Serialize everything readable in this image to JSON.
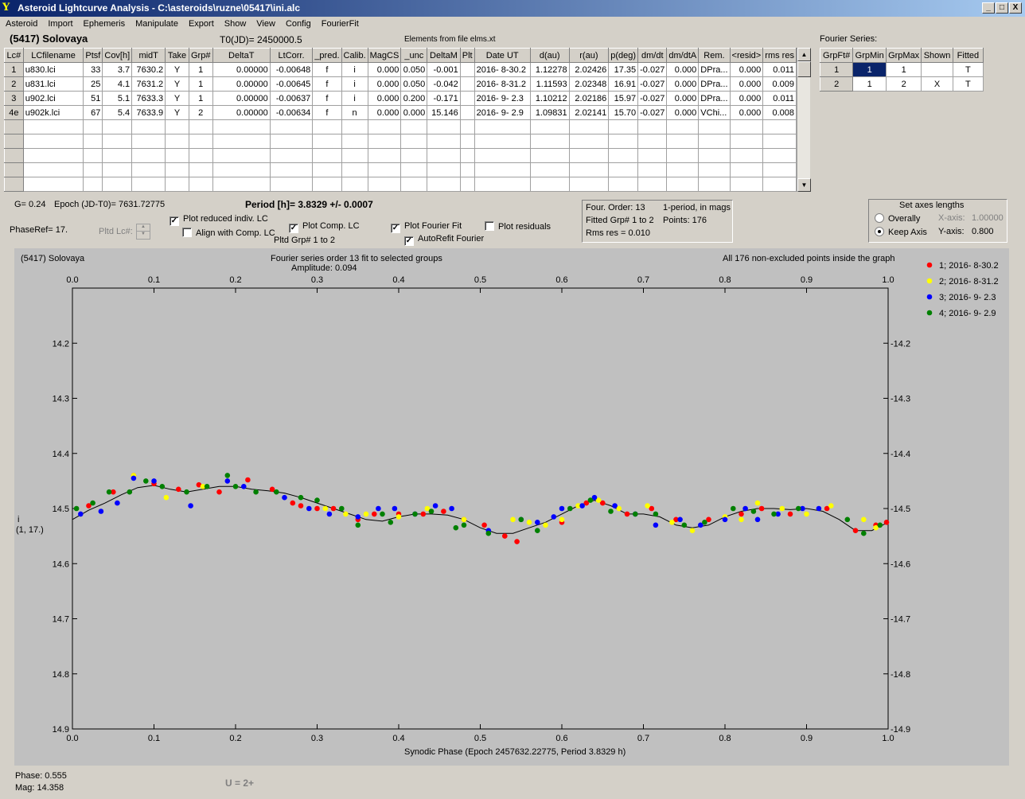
{
  "window": {
    "title": "Asteroid Lightcurve Analysis - C:\\asteroids\\ruzne\\05417\\ini.alc",
    "app_icon": "Y",
    "min_label": "_",
    "max_label": "□",
    "close_label": "X"
  },
  "menu": [
    "Asteroid",
    "Import",
    "Ephemeris",
    "Manipulate",
    "Export",
    "Show",
    "View",
    "Config",
    "FourierFit"
  ],
  "header": {
    "asteroid_name": "(5417) Solovaya",
    "t0": "T0(JD)= 2450000.5",
    "elements": "Elements from file elms.xt"
  },
  "lc_table": {
    "columns": [
      "Lc#",
      "LCfilename",
      "Ptsf",
      "Cov[h]",
      "midT",
      "Take",
      "Grp#",
      "DeltaT",
      "LtCorr.",
      "_pred.",
      "Calib.",
      "MagCS",
      "_unc",
      "DeltaM",
      "Plt",
      "Date UT",
      "d(au)",
      "r(au)",
      "p(deg)",
      "dm/dt",
      "dm/dtA",
      "Rem.",
      "<resid>",
      "rms res"
    ],
    "rows": [
      [
        "1",
        "u830.lci",
        "33",
        "3.7",
        "7630.2",
        "Y",
        "1",
        "0.00000",
        "-0.00648",
        "f",
        "i",
        "0.000",
        "0.050",
        "-0.001",
        "",
        "2016- 8-30.2",
        "1.12278",
        "2.02426",
        "17.35",
        "-0.027",
        "0.000",
        "DPra...",
        "0.000",
        "0.011"
      ],
      [
        "2",
        "u831.lci",
        "25",
        "4.1",
        "7631.2",
        "Y",
        "1",
        "0.00000",
        "-0.00645",
        "f",
        "i",
        "0.000",
        "0.050",
        "-0.042",
        "",
        "2016- 8-31.2",
        "1.11593",
        "2.02348",
        "16.91",
        "-0.027",
        "0.000",
        "DPra...",
        "0.000",
        "0.009"
      ],
      [
        "3",
        "u902.lci",
        "51",
        "5.1",
        "7633.3",
        "Y",
        "1",
        "0.00000",
        "-0.00637",
        "f",
        "i",
        "0.000",
        "0.200",
        "-0.171",
        "",
        "2016- 9- 2.3",
        "1.10212",
        "2.02186",
        "15.97",
        "-0.027",
        "0.000",
        "DPra...",
        "0.000",
        "0.011"
      ],
      [
        "4e",
        "u902k.lci",
        "67",
        "5.4",
        "7633.9",
        "Y",
        "2",
        "0.00000",
        "-0.00634",
        "f",
        "n",
        "0.000",
        "0.000",
        "15.146",
        "",
        "2016- 9- 2.9",
        "1.09831",
        "2.02141",
        "15.70",
        "-0.027",
        "0.000",
        "VChi...",
        "0.000",
        "0.008"
      ]
    ],
    "scroll_up": "▲",
    "scroll_down": "▼"
  },
  "fourier_table": {
    "label": "Fourier Series:",
    "columns": [
      "GrpFt#",
      "GrpMin",
      "GrpMax",
      "Shown",
      "Fitted"
    ],
    "rows": [
      [
        "1",
        "1",
        "1",
        "",
        "T"
      ],
      [
        "2",
        "1",
        "2",
        "X",
        "T"
      ]
    ]
  },
  "controls": {
    "g_value": "G= 0.24",
    "epoch": "Epoch (JD-T0)= 7631.72775",
    "period": "Period [h]= 3.8329 +/- 0.0007",
    "phase_ref": "PhaseRef= 17.",
    "pltd_lc": "Pltd Lc#:",
    "plot_reduced": {
      "label": "Plot reduced indiv. LC",
      "checked": true
    },
    "align_comp": {
      "label": "Align with Comp. LC",
      "checked": false
    },
    "plot_comp": {
      "label": "Plot Comp. LC",
      "checked": true
    },
    "pltd_grp": "Pltd Grp#  1   to   2",
    "plot_fourier": {
      "label": "Plot Fourier Fit",
      "checked": true
    },
    "autorefit": {
      "label": "AutoRefit Fourier",
      "checked": true
    },
    "plot_residuals": {
      "label": "Plot residuals",
      "checked": false
    },
    "check_mark": "✓"
  },
  "fourier_info": {
    "order": "Four. Order: 13",
    "mode": "1-period, in mags",
    "fitted": "Fitted Grp# 1 to 2",
    "points": "Points: 176",
    "rms": "Rms res     = 0.010"
  },
  "axes_box": {
    "title": "Set axes lengths",
    "overally": "Overally",
    "keep_axis": "Keep Axis",
    "x_axis_label": "X-axis:",
    "x_axis_value": "1.00000",
    "y_axis_label": "Y-axis:",
    "y_axis_value": "0.800",
    "selected": "Keep Axis"
  },
  "chart_header": {
    "left": "(5417) Solovaya",
    "center1": "Fourier series order 13 fit to selected groups",
    "center2": "Amplitude: 0.094",
    "right": "All 176 non-excluded points inside the graph"
  },
  "chart_data": {
    "type": "scatter",
    "xlabel": "Synodic Phase (Epoch 2457632.22775, Period 3.8329 h)",
    "ylabel": "i\n(1, 17.)",
    "ylabel_line1": "i",
    "ylabel_line2": "(1, 17.)",
    "xlim": [
      0.0,
      1.0
    ],
    "ylim": [
      14.1,
      14.9
    ],
    "y_inverted": true,
    "xticks": [
      "0.0",
      "0.1",
      "0.2",
      "0.3",
      "0.4",
      "0.5",
      "0.6",
      "0.7",
      "0.8",
      "0.9",
      "1.0"
    ],
    "yticks": [
      "14.2",
      "14.3",
      "14.4",
      "14.5",
      "14.6",
      "14.7",
      "14.8",
      "14.9"
    ],
    "grid": false,
    "legend_placement": "top-right",
    "series": [
      {
        "name": "1; 2016- 8-30.2",
        "color": "#ff0000",
        "x": [
          0.02,
          0.05,
          0.075,
          0.1,
          0.13,
          0.155,
          0.18,
          0.215,
          0.245,
          0.27,
          0.28,
          0.3,
          0.32,
          0.35,
          0.37,
          0.4,
          0.43,
          0.455,
          0.48,
          0.505,
          0.53,
          0.545,
          0.6,
          0.63,
          0.65,
          0.68,
          0.71,
          0.74,
          0.78,
          0.82,
          0.845,
          0.88,
          0.925,
          0.96,
          0.985,
          0.998
        ],
        "y": [
          14.495,
          14.47,
          14.44,
          14.455,
          14.465,
          14.457,
          14.47,
          14.448,
          14.465,
          14.49,
          14.495,
          14.5,
          14.5,
          14.52,
          14.51,
          14.51,
          14.51,
          14.505,
          14.52,
          14.53,
          14.55,
          14.56,
          14.525,
          14.49,
          14.49,
          14.51,
          14.5,
          14.52,
          14.52,
          14.51,
          14.5,
          14.51,
          14.5,
          14.54,
          14.53,
          14.525
        ]
      },
      {
        "name": "2; 2016- 8-31.2",
        "color": "#ffff00",
        "x": [
          0.075,
          0.115,
          0.16,
          0.31,
          0.335,
          0.36,
          0.4,
          0.435,
          0.48,
          0.54,
          0.56,
          0.58,
          0.6,
          0.62,
          0.645,
          0.67,
          0.705,
          0.735,
          0.76,
          0.8,
          0.82,
          0.84,
          0.87,
          0.9,
          0.93,
          0.97,
          0.985
        ],
        "y": [
          14.44,
          14.48,
          14.46,
          14.5,
          14.51,
          14.51,
          14.515,
          14.5,
          14.52,
          14.52,
          14.525,
          14.53,
          14.52,
          14.495,
          14.485,
          14.5,
          14.495,
          14.525,
          14.54,
          14.515,
          14.52,
          14.49,
          14.5,
          14.51,
          14.495,
          14.52,
          14.535
        ]
      },
      {
        "name": "3; 2016- 9- 2.3",
        "color": "#0000ff",
        "x": [
          0.01,
          0.035,
          0.055,
          0.075,
          0.1,
          0.145,
          0.19,
          0.21,
          0.26,
          0.29,
          0.315,
          0.35,
          0.375,
          0.395,
          0.42,
          0.445,
          0.465,
          0.51,
          0.55,
          0.57,
          0.59,
          0.6,
          0.625,
          0.64,
          0.665,
          0.69,
          0.715,
          0.745,
          0.77,
          0.8,
          0.825,
          0.84,
          0.865,
          0.895,
          0.915
        ],
        "y": [
          14.51,
          14.505,
          14.49,
          14.445,
          14.45,
          14.495,
          14.45,
          14.46,
          14.48,
          14.5,
          14.51,
          14.515,
          14.5,
          14.5,
          14.51,
          14.495,
          14.5,
          14.54,
          14.52,
          14.525,
          14.515,
          14.5,
          14.495,
          14.48,
          14.495,
          14.51,
          14.53,
          14.52,
          14.53,
          14.52,
          14.5,
          14.52,
          14.51,
          14.5,
          14.5
        ]
      },
      {
        "name": "4; 2016- 9- 2.9",
        "color": "#008000",
        "x": [
          0.005,
          0.025,
          0.045,
          0.07,
          0.09,
          0.11,
          0.14,
          0.165,
          0.19,
          0.2,
          0.225,
          0.25,
          0.28,
          0.3,
          0.33,
          0.35,
          0.38,
          0.39,
          0.42,
          0.44,
          0.47,
          0.48,
          0.51,
          0.55,
          0.57,
          0.61,
          0.635,
          0.66,
          0.69,
          0.715,
          0.75,
          0.775,
          0.81,
          0.835,
          0.86,
          0.89,
          0.95,
          0.97,
          0.99
        ],
        "y": [
          14.5,
          14.49,
          14.47,
          14.47,
          14.45,
          14.46,
          14.47,
          14.46,
          14.44,
          14.46,
          14.47,
          14.47,
          14.48,
          14.485,
          14.5,
          14.53,
          14.51,
          14.525,
          14.51,
          14.505,
          14.535,
          14.53,
          14.545,
          14.52,
          14.54,
          14.5,
          14.485,
          14.505,
          14.51,
          14.51,
          14.53,
          14.525,
          14.5,
          14.505,
          14.51,
          14.5,
          14.52,
          14.545,
          14.53
        ]
      }
    ],
    "fit_curve": {
      "name": "Fourier fit",
      "x": [
        0.0,
        0.02,
        0.04,
        0.06,
        0.08,
        0.1,
        0.12,
        0.14,
        0.16,
        0.18,
        0.2,
        0.22,
        0.24,
        0.26,
        0.28,
        0.3,
        0.32,
        0.34,
        0.36,
        0.38,
        0.4,
        0.42,
        0.44,
        0.46,
        0.48,
        0.5,
        0.52,
        0.54,
        0.56,
        0.58,
        0.6,
        0.62,
        0.64,
        0.66,
        0.68,
        0.7,
        0.72,
        0.74,
        0.76,
        0.78,
        0.8,
        0.82,
        0.84,
        0.86,
        0.88,
        0.9,
        0.92,
        0.94,
        0.96,
        0.98,
        1.0
      ],
      "y": [
        14.52,
        14.503,
        14.49,
        14.475,
        14.462,
        14.458,
        14.465,
        14.47,
        14.465,
        14.46,
        14.46,
        14.465,
        14.468,
        14.472,
        14.48,
        14.49,
        14.5,
        14.51,
        14.52,
        14.523,
        14.515,
        14.51,
        14.51,
        14.512,
        14.52,
        14.535,
        14.545,
        14.545,
        14.535,
        14.525,
        14.51,
        14.495,
        14.485,
        14.495,
        14.51,
        14.51,
        14.515,
        14.53,
        14.535,
        14.53,
        14.515,
        14.505,
        14.5,
        14.5,
        14.502,
        14.5,
        14.505,
        14.52,
        14.54,
        14.54,
        14.525
      ]
    }
  },
  "status": {
    "phase": "Phase:  0.555",
    "mag": "Mag:   14.358",
    "u_value": "U = 2+"
  }
}
